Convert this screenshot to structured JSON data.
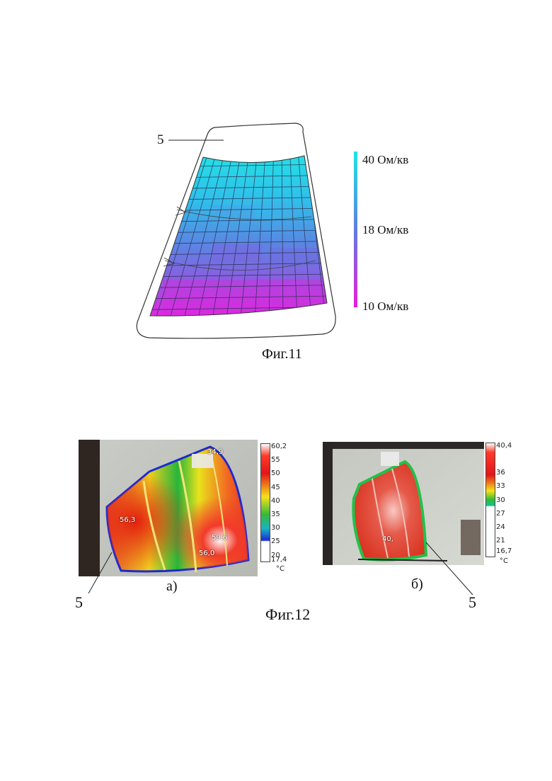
{
  "fig11": {
    "ref_label": "5",
    "caption": "Фиг.11",
    "scale": {
      "labels": [
        "40 Ом/кв",
        "18 Ом/кв",
        "10 Ом/кв"
      ],
      "colors": [
        "#23dfe3",
        "#5f7ee0",
        "#e622dd"
      ]
    }
  },
  "fig12": {
    "caption": "Фиг.12",
    "a": {
      "sub_label": "а)",
      "ref_label": "5",
      "scale_ticks": [
        "60,2",
        "55",
        "50",
        "45",
        "40",
        "35",
        "30",
        "25",
        "20",
        "17,4"
      ],
      "unit": "°C",
      "points": [
        "34,9",
        "56,3",
        "59,6",
        "56,0"
      ]
    },
    "b": {
      "sub_label": "б)",
      "ref_label": "5",
      "scale_ticks": [
        "40,4",
        "36",
        "33",
        "30",
        "27",
        "24",
        "21",
        "16,7"
      ],
      "unit": "°C",
      "points": [
        "40,"
      ]
    }
  }
}
